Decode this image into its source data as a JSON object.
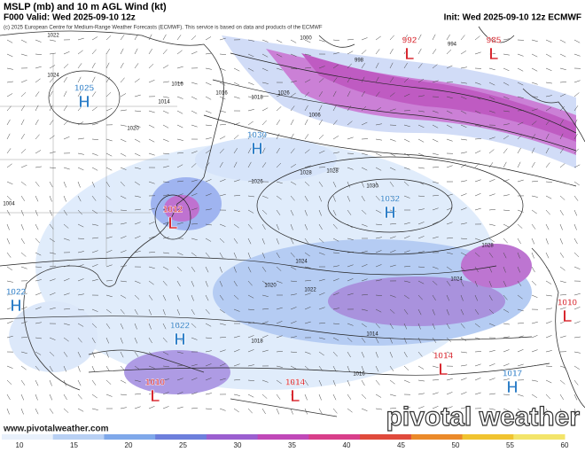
{
  "header": {
    "title": "MSLP (mb) and 10 m AGL Wind (kt)",
    "valid": "F000 Valid: Wed 2025-09-10 12z",
    "init": "Init: Wed 2025-09-10 12z ECMWF",
    "credit": "(c) 2025 European Centre for Medium-Range Weather Forecasts (ECMWF). This service is based on data and products of the ECMWF"
  },
  "centers": [
    {
      "type": "H",
      "pressure": 1025
    },
    {
      "type": "H",
      "pressure": 1030
    },
    {
      "type": "H",
      "pressure": 1032
    },
    {
      "type": "L",
      "pressure": 1012
    },
    {
      "type": "H",
      "pressure": 1022
    },
    {
      "type": "H",
      "pressure": 1022
    },
    {
      "type": "L",
      "pressure": 1010
    },
    {
      "type": "L",
      "pressure": 1014
    },
    {
      "type": "L",
      "pressure": 1014
    },
    {
      "type": "H",
      "pressure": 1017
    },
    {
      "type": "L",
      "pressure": 1010
    },
    {
      "type": "L",
      "pressure": 992
    },
    {
      "type": "L",
      "pressure": 985
    }
  ],
  "isobar_labels": [
    1022,
    1024,
    1020,
    1016,
    1014,
    1016,
    1018,
    1026,
    1028,
    1028,
    1030,
    1026,
    1024,
    1022,
    1020,
    1018,
    1016,
    1014,
    1024,
    1028,
    1000,
    1006,
    994,
    998,
    1004
  ],
  "colorbar": {
    "ticks": [
      10,
      15,
      20,
      25,
      30,
      35,
      40,
      45,
      50,
      55,
      60
    ]
  },
  "footer": {
    "url": "www.pivotalweather.com",
    "brand": "pivotal weather"
  }
}
